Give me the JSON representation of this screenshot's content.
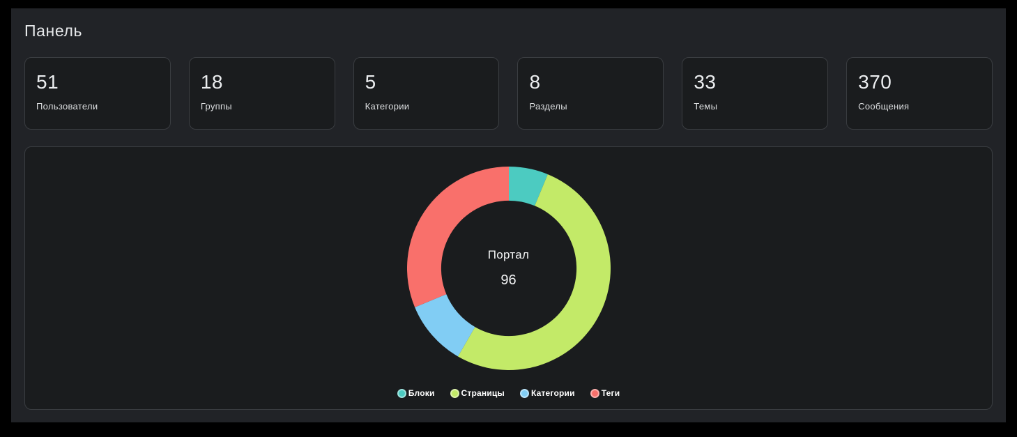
{
  "page": {
    "title": "Панель"
  },
  "colors": {
    "frame": "#000000",
    "page_background": "#212327",
    "panel_background": "#1a1c1e",
    "panel_border": "#3a3d41",
    "text_primary": "#ebedef",
    "text_secondary": "#dcdee0"
  },
  "stats": [
    {
      "value": "51",
      "label": "Пользователи"
    },
    {
      "value": "18",
      "label": "Группы"
    },
    {
      "value": "5",
      "label": "Категории"
    },
    {
      "value": "8",
      "label": "Разделы"
    },
    {
      "value": "33",
      "label": "Темы"
    },
    {
      "value": "370",
      "label": "Сообщения"
    }
  ],
  "chart_data": {
    "type": "pie",
    "variant": "doughnut",
    "title": "Портал",
    "center_label": "Портал",
    "center_total": "96",
    "total": 96,
    "segments": [
      {
        "label": "Блоки",
        "value": 6,
        "color": "#4ccbc1"
      },
      {
        "label": "Страницы",
        "value": 50,
        "color": "#c3ea68"
      },
      {
        "label": "Категории",
        "value": 10,
        "color": "#81cdf4"
      },
      {
        "label": "Теги",
        "value": 30,
        "color": "#f9706b"
      }
    ],
    "start_angle_deg": 0,
    "direction": "clockwise",
    "cutout_ratio": 0.665,
    "legend_position": "bottom",
    "grid": false
  }
}
